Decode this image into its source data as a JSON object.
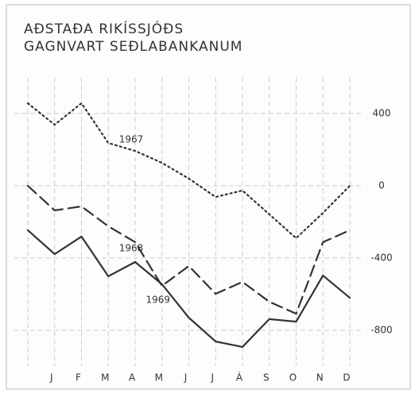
{
  "chart_data": {
    "type": "line",
    "title": [
      "AÐSTAÐA RIKÍSSJÓÐS",
      "GAGNVART SEÐLABANKANUM"
    ],
    "categories": [
      null,
      "J",
      "F",
      "M",
      "A",
      "M",
      "J",
      "J",
      "Á",
      "S",
      "O",
      "N",
      "D"
    ],
    "series": [
      {
        "name": "1967",
        "color": "#333333",
        "style": "dotted",
        "values": [
          457,
          338,
          457,
          237,
          193,
          127,
          40,
          -62,
          -26,
          -158,
          -290,
          -150,
          0
        ]
      },
      {
        "name": "1968",
        "color": "#333333",
        "style": "dashed",
        "values": [
          0,
          -136,
          -114,
          -224,
          -312,
          -554,
          -444,
          -598,
          -532,
          -642,
          -708,
          -312,
          -246
        ]
      },
      {
        "name": "1969",
        "color": "#333333",
        "style": "solid",
        "values": [
          -246,
          -378,
          -281,
          -501,
          -422,
          -545,
          -730,
          -862,
          -892,
          -738,
          -752,
          -497,
          -620
        ]
      }
    ],
    "ylim": [
      -1000,
      600
    ],
    "yticks": [
      400,
      0,
      -400,
      -800
    ],
    "grid": true
  }
}
